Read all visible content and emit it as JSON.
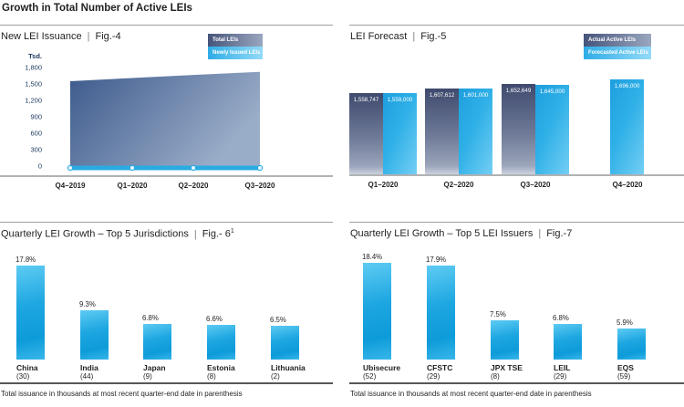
{
  "header": {
    "title": "Growth in Total Number of Active LEIs"
  },
  "pipe": "|",
  "footnote": "Total issuance in thousands at most recent quarter-end date in parenthesis",
  "colors": {
    "cyan_accent": "#29abe2",
    "navy_dark": "#3f4a6e",
    "navy_gray_light": "#9aa4ba",
    "area_left": "#3d5a8c",
    "area_right": "#9aadc8",
    "cyan_bar_top": "#5ecbf3",
    "cyan_bar_deep": "#0d9bd9",
    "axis_text": "#17365d",
    "text": "#231f20"
  },
  "chart_data": [
    {
      "type": "area",
      "title": "New LEI Issuance",
      "figure": "Fig.-4",
      "ylabel": "Tsd.",
      "ylim": [
        0,
        1800
      ],
      "y_ticks": [
        "1,800",
        "1,500",
        "1,200",
        "900",
        "600",
        "300",
        "0"
      ],
      "categories": [
        "Q4–2019",
        "Q1–2020",
        "Q2–2020",
        "Q3–2020"
      ],
      "series": [
        {
          "name": "Total LEIs",
          "style": "area-navy-gradient",
          "values": [
            1550,
            1608,
            1665,
            1722
          ]
        },
        {
          "name": "Newly Issued LEIs",
          "style": "thick-cyan-line-with-markers",
          "values": [
            35,
            40,
            37,
            35
          ]
        }
      ],
      "legend_position": "top-right",
      "grid": false
    },
    {
      "type": "bar",
      "title": "LEI Forecast",
      "figure": "Fig.-5",
      "categories": [
        "Q1–2020",
        "Q2–2020",
        "Q3–2020",
        "Q4–2020"
      ],
      "series": [
        {
          "name": "Actual Active LEIs",
          "values": [
            1558747,
            1607612,
            1652649,
            null
          ],
          "value_labels": [
            "1,558,747",
            "1,607,612",
            "1,652,649",
            null
          ]
        },
        {
          "name": "Forecasted Active LEIs",
          "values": [
            1559000,
            1601000,
            1645000,
            1696000
          ],
          "value_labels": [
            "1,559,000",
            "1,601,000",
            "1,645,000",
            "1,696,000"
          ]
        }
      ],
      "legend_position": "top-right",
      "value_labels_inside_bar_top": true,
      "grid": false
    },
    {
      "type": "bar",
      "title": "Quarterly LEI Growth – Top 5 Jurisdictions",
      "figure": "Fig.- 6",
      "figure_sup": "1",
      "categories": [
        "China",
        "India",
        "Japan",
        "Estonia",
        "Lithuania"
      ],
      "category_sub": [
        "(30)",
        "(44)",
        "(9)",
        "(8)",
        "(2)"
      ],
      "values": [
        17.8,
        9.3,
        6.8,
        6.6,
        6.5
      ],
      "value_labels": [
        "17.8%",
        "9.3%",
        "6.8%",
        "6.6%",
        "6.5%"
      ],
      "ylabel": "",
      "grid": false
    },
    {
      "type": "bar",
      "title": "Quarterly LEI Growth – Top 5 LEI Issuers",
      "figure": "Fig.-7",
      "categories": [
        "Ubisecure",
        "CFSTC",
        "JPX TSE",
        "LEIL",
        "EQS"
      ],
      "category_sub": [
        "(52)",
        "(29)",
        "(8)",
        "(29)",
        "(59)"
      ],
      "values": [
        18.4,
        17.9,
        7.5,
        6.8,
        5.9
      ],
      "value_labels": [
        "18.4%",
        "17.9%",
        "7.5%",
        "6.8%",
        "5.9%"
      ],
      "ylabel": "",
      "grid": false
    }
  ]
}
